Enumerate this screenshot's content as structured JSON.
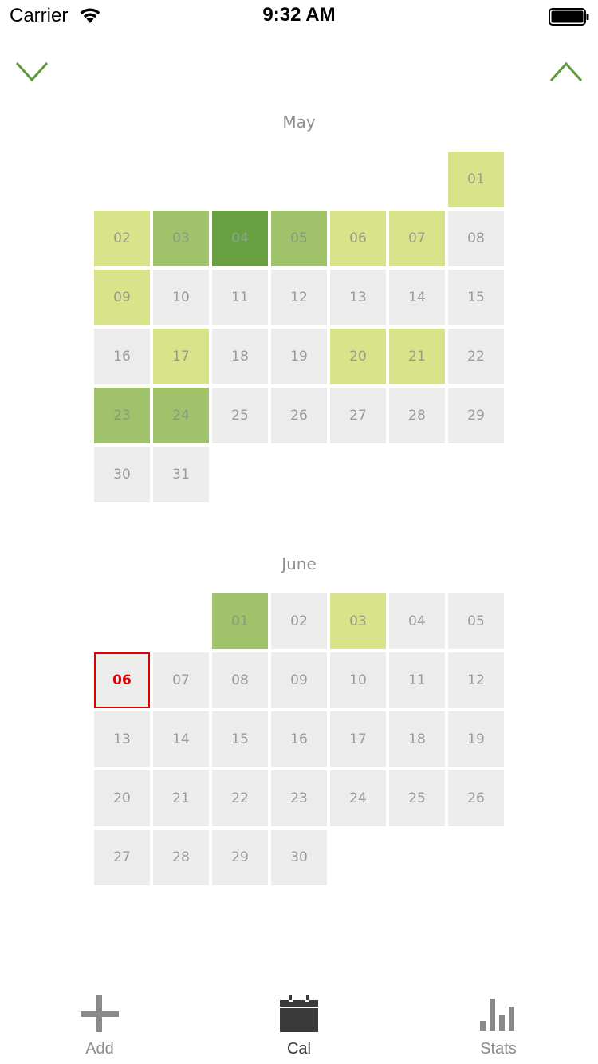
{
  "status_bar": {
    "carrier": "Carrier",
    "time": "9:32 AM"
  },
  "nav": {
    "prev_icon": "chevron-down-icon",
    "next_icon": "chevron-up-icon",
    "accent": "#5c9a3c"
  },
  "levels": {
    "0": "#ececec",
    "1": "#d9e389",
    "2": "#9fc26b",
    "3": "#68a042"
  },
  "months": [
    {
      "name": "May",
      "first_weekday_index": 6,
      "days": [
        "01",
        "02",
        "03",
        "04",
        "05",
        "06",
        "07",
        "08",
        "09",
        "10",
        "11",
        "12",
        "13",
        "14",
        "15",
        "16",
        "17",
        "18",
        "19",
        "20",
        "21",
        "22",
        "23",
        "24",
        "25",
        "26",
        "27",
        "28",
        "29",
        "30",
        "31"
      ],
      "levels": [
        1,
        1,
        2,
        3,
        2,
        1,
        1,
        0,
        1,
        0,
        0,
        0,
        0,
        0,
        0,
        0,
        1,
        0,
        0,
        1,
        1,
        0,
        2,
        2,
        0,
        0,
        0,
        0,
        0,
        0,
        0
      ]
    },
    {
      "name": "June",
      "first_weekday_index": 2,
      "days": [
        "01",
        "02",
        "03",
        "04",
        "05",
        "06",
        "07",
        "08",
        "09",
        "10",
        "11",
        "12",
        "13",
        "14",
        "15",
        "16",
        "17",
        "18",
        "19",
        "20",
        "21",
        "22",
        "23",
        "24",
        "25",
        "26",
        "27",
        "28",
        "29",
        "30"
      ],
      "levels": [
        2,
        0,
        1,
        0,
        0,
        0,
        0,
        0,
        0,
        0,
        0,
        0,
        0,
        0,
        0,
        0,
        0,
        0,
        0,
        0,
        0,
        0,
        0,
        0,
        0,
        0,
        0,
        0,
        0,
        0
      ],
      "today": "06",
      "today_color": "#e00000"
    }
  ],
  "tabs": [
    {
      "label": "Add",
      "icon": "plus-icon"
    },
    {
      "label": "Cal",
      "icon": "calendar-icon",
      "selected": true
    },
    {
      "label": "Stats",
      "icon": "bar-chart-icon"
    }
  ]
}
